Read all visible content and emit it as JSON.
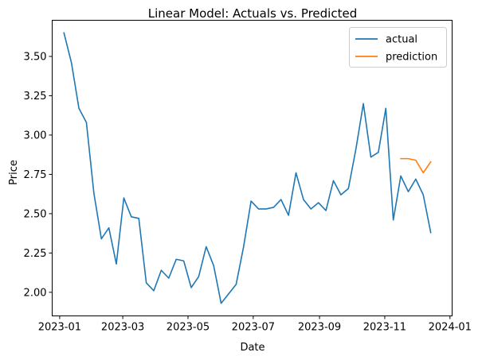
{
  "colors": {
    "actual": "#1f77b4",
    "prediction": "#ff7f0e",
    "axis": "#000000",
    "background": "#ffffff",
    "legend_border": "#cccccc"
  },
  "chart_data": {
    "type": "line",
    "title": "Linear Model: Actuals vs. Predicted",
    "xlabel": "Date",
    "ylabel": "Price",
    "xlim": [
      "2022-12-25",
      "2024-01-03"
    ],
    "ylim": [
      1.85,
      3.73
    ],
    "grid": false,
    "legend_position": "upper-right",
    "x_ticks": [
      {
        "date": "2023-01-01",
        "label": "2023-01"
      },
      {
        "date": "2023-03-01",
        "label": "2023-03"
      },
      {
        "date": "2023-05-01",
        "label": "2023-05"
      },
      {
        "date": "2023-07-01",
        "label": "2023-07"
      },
      {
        "date": "2023-09-01",
        "label": "2023-09"
      },
      {
        "date": "2023-11-01",
        "label": "2023-11"
      },
      {
        "date": "2024-01-01",
        "label": "2024-01"
      }
    ],
    "y_ticks": [
      {
        "value": 2.0,
        "label": "2.00"
      },
      {
        "value": 2.25,
        "label": "2.25"
      },
      {
        "value": 2.5,
        "label": "2.50"
      },
      {
        "value": 2.75,
        "label": "2.75"
      },
      {
        "value": 3.0,
        "label": "3.00"
      },
      {
        "value": 3.25,
        "label": "3.25"
      },
      {
        "value": 3.5,
        "label": "3.50"
      }
    ],
    "series": [
      {
        "name": "actual",
        "color": "#1f77b4",
        "x": [
          "2023-01-05",
          "2023-01-12",
          "2023-01-19",
          "2023-01-26",
          "2023-02-02",
          "2023-02-09",
          "2023-02-16",
          "2023-02-23",
          "2023-03-02",
          "2023-03-09",
          "2023-03-16",
          "2023-03-23",
          "2023-03-30",
          "2023-04-06",
          "2023-04-13",
          "2023-04-20",
          "2023-04-27",
          "2023-05-04",
          "2023-05-11",
          "2023-05-18",
          "2023-05-25",
          "2023-06-01",
          "2023-06-08",
          "2023-06-15",
          "2023-06-22",
          "2023-06-29",
          "2023-07-06",
          "2023-07-13",
          "2023-07-20",
          "2023-07-27",
          "2023-08-03",
          "2023-08-10",
          "2023-08-17",
          "2023-08-24",
          "2023-08-31",
          "2023-09-07",
          "2023-09-14",
          "2023-09-21",
          "2023-09-28",
          "2023-10-05",
          "2023-10-12",
          "2023-10-19",
          "2023-10-26",
          "2023-11-02",
          "2023-11-09",
          "2023-11-16",
          "2023-11-23",
          "2023-11-30",
          "2023-12-07",
          "2023-12-14"
        ],
        "y": [
          3.65,
          3.46,
          3.17,
          3.08,
          2.63,
          2.34,
          2.41,
          2.18,
          2.6,
          2.48,
          2.47,
          2.06,
          2.01,
          2.14,
          2.09,
          2.21,
          2.2,
          2.03,
          2.1,
          2.29,
          2.17,
          1.93,
          1.99,
          2.05,
          2.29,
          2.58,
          2.53,
          2.53,
          2.54,
          2.59,
          2.49,
          2.76,
          2.59,
          2.53,
          2.57,
          2.52,
          2.71,
          2.62,
          2.66,
          2.91,
          3.2,
          2.86,
          2.89,
          3.17,
          2.46,
          2.74,
          2.64,
          2.72,
          2.62,
          2.38
        ]
      },
      {
        "name": "prediction",
        "color": "#ff7f0e",
        "x": [
          "2023-11-16",
          "2023-11-23",
          "2023-11-30",
          "2023-12-07",
          "2023-12-14"
        ],
        "y": [
          2.85,
          2.85,
          2.84,
          2.76,
          2.83
        ]
      }
    ]
  }
}
